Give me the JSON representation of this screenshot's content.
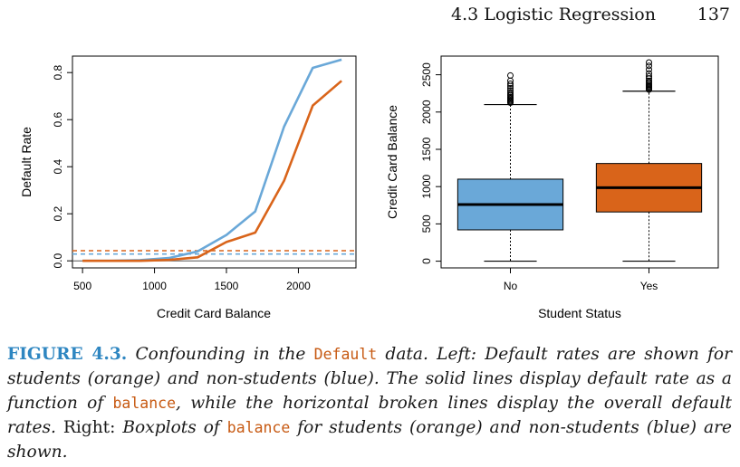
{
  "header": {
    "section": "4.3 Logistic Regression",
    "page_number": "137"
  },
  "chart_data": [
    {
      "type": "line",
      "panel": "left",
      "xlabel": "Credit Card Balance",
      "ylabel": "Default Rate",
      "xlim": [
        430,
        2400
      ],
      "ylim": [
        -0.03,
        0.87
      ],
      "x_ticks": [
        500,
        1000,
        1500,
        2000
      ],
      "y_ticks": [
        0.0,
        0.2,
        0.4,
        0.6,
        0.8
      ],
      "x_tick_labels": [
        "500",
        "1000",
        "1500",
        "2000"
      ],
      "y_tick_labels": [
        "0.0",
        "0.2",
        "0.4",
        "0.6",
        "0.8"
      ],
      "grid": false,
      "series": [
        {
          "color": "#6aa8d8",
          "style": "solid",
          "x": [
            500,
            700,
            900,
            1100,
            1300,
            1500,
            1700,
            1900,
            2100,
            2300
          ],
          "values": [
            0.0,
            0.0,
            0.003,
            0.012,
            0.04,
            0.11,
            0.21,
            0.57,
            0.82,
            0.855
          ]
        },
        {
          "color": "#d9641a",
          "style": "solid",
          "x": [
            500,
            700,
            900,
            1100,
            1300,
            1500,
            1700,
            1900,
            2100,
            2300
          ],
          "values": [
            0.0,
            0.0,
            0.0,
            0.004,
            0.015,
            0.08,
            0.12,
            0.34,
            0.66,
            0.765
          ]
        },
        {
          "color": "#d9641a",
          "style": "dashed",
          "x": [
            430,
            2400
          ],
          "values": [
            0.043,
            0.043
          ]
        },
        {
          "color": "#6aa8d8",
          "style": "dashed",
          "x": [
            430,
            2400
          ],
          "values": [
            0.029,
            0.029
          ]
        }
      ]
    },
    {
      "type": "box",
      "panel": "right",
      "xlabel": "Student Status",
      "ylabel": "Credit Card Balance",
      "ylim": [
        -90,
        2750
      ],
      "y_ticks": [
        0,
        500,
        1000,
        1500,
        2000,
        2500
      ],
      "y_tick_labels": [
        "0",
        "500",
        "1000",
        "1500",
        "2000",
        "2500"
      ],
      "categories": [
        "No",
        "Yes"
      ],
      "grid": false,
      "boxes": [
        {
          "category": "No",
          "color": "#6aa8d8",
          "whisker_low": 0,
          "q1": 420,
          "median": 760,
          "q3": 1100,
          "whisker_high": 2100,
          "outliers": [
            2125,
            2140,
            2155,
            2170,
            2185,
            2200,
            2220,
            2240,
            2265,
            2290,
            2320,
            2350,
            2380,
            2420,
            2490
          ]
        },
        {
          "category": "Yes",
          "color": "#d9641a",
          "whisker_low": 0,
          "q1": 660,
          "median": 985,
          "q3": 1310,
          "whisker_high": 2280,
          "outliers": [
            2300,
            2315,
            2330,
            2345,
            2360,
            2380,
            2400,
            2420,
            2450,
            2480,
            2520,
            2570,
            2620,
            2665
          ]
        }
      ]
    }
  ],
  "caption": {
    "label": "FIGURE 4.3.",
    "t1": " Confounding in the ",
    "c1": "Default",
    "t2": " data. Left: Default rates are shown for students (orange) and non-students (blue). The solid lines display default rate as a function of ",
    "c2": "balance",
    "t3": ", while the horizontal broken lines display the overall default rates. ",
    "t4": "Right:",
    "t5": " Boxplots of ",
    "c3": "balance",
    "t6": " for students (orange) and non-students (blue) are shown."
  }
}
